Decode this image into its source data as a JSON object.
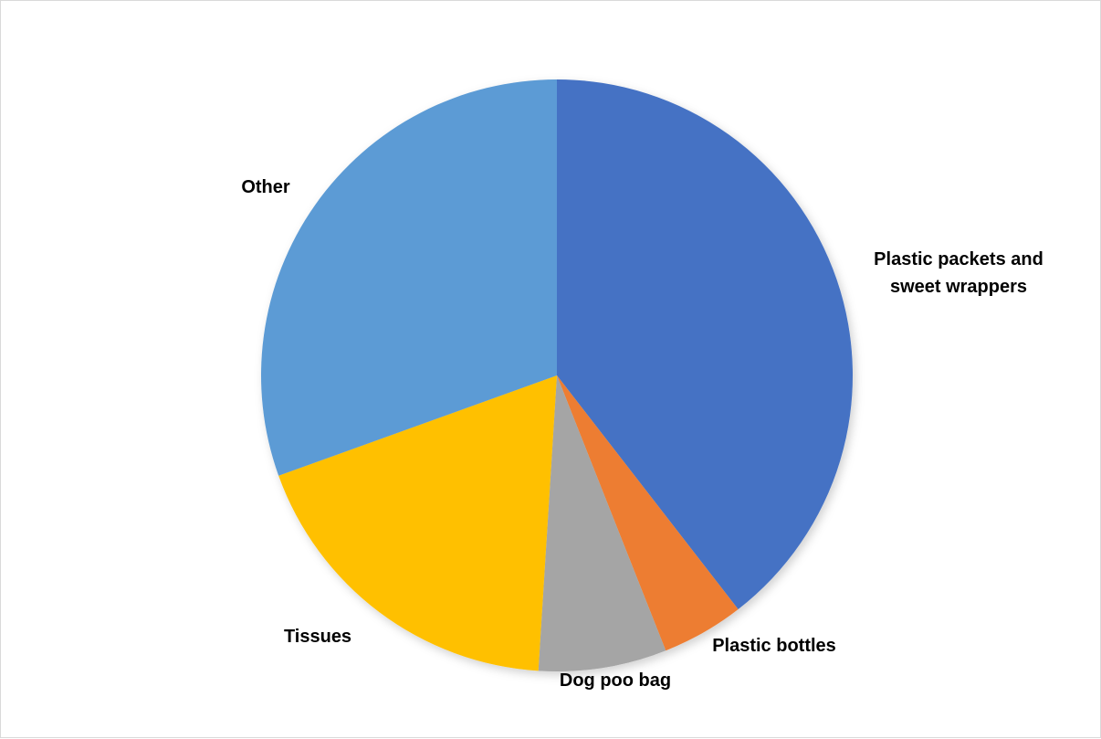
{
  "chart_data": {
    "type": "pie",
    "title": "",
    "slices": [
      {
        "label": "Plastic packets and sweet wrappers",
        "label_lines": [
          "Plastic packets and",
          "sweet wrappers"
        ],
        "value": 39.5,
        "color": "#4472C4"
      },
      {
        "label": "Plastic bottles",
        "label_lines": [
          "Plastic bottles"
        ],
        "value": 4.5,
        "color": "#ED7D31"
      },
      {
        "label": "Dog poo bag",
        "label_lines": [
          "Dog poo bag"
        ],
        "value": 7.0,
        "color": "#A5A5A5"
      },
      {
        "label": "Tissues",
        "label_lines": [
          "Tissues"
        ],
        "value": 18.5,
        "color": "#FFC000"
      },
      {
        "label": "Other",
        "label_lines": [
          "Other"
        ],
        "value": 30.5,
        "color": "#5B9BD5"
      }
    ],
    "start_angle": "12 o'clock",
    "direction": "clockwise",
    "legend": "none",
    "data_labels": "outside, category name"
  }
}
